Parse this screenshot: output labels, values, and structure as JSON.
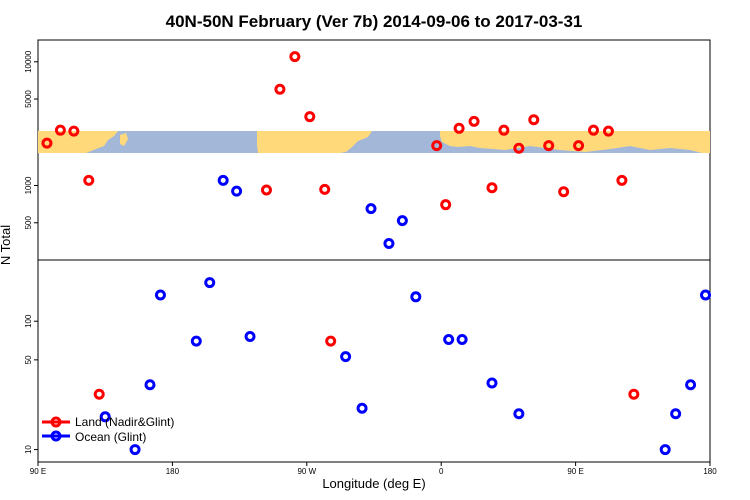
{
  "chart_data": {
    "type": "scatter",
    "title": "40N-50N February (Ver 7b)   2014-09-06 to 2017-03-31",
    "xlabel": "Longitude (deg E)",
    "ylabel": "N Total",
    "x_ticks": [
      {
        "value": 90,
        "label": "90 E"
      },
      {
        "value": 180,
        "label": "180"
      },
      {
        "value": 270,
        "label": "90 W"
      },
      {
        "value": 360,
        "label": "0"
      },
      {
        "value": 450,
        "label": "90 E"
      },
      {
        "value": 540,
        "label": "180"
      }
    ],
    "xlim": [
      90,
      540
    ],
    "y_scale": "log",
    "upper_panel": {
      "y_ticks": [
        500,
        1000,
        5000,
        10000
      ],
      "ylim": [
        250,
        15000
      ]
    },
    "lower_panel": {
      "y_ticks": [
        10,
        50,
        100
      ],
      "ylim": [
        8,
        300
      ]
    },
    "colors": {
      "land": "#ff0000",
      "ocean": "#0000ff",
      "map_ocean": "#a3b8d9",
      "map_land": "#ffd97a"
    },
    "legend_position": "bottom-left",
    "series": [
      {
        "name": "Land (Nadir&Glint)",
        "marker": "open-circle",
        "points": [
          [
            96,
            2200
          ],
          [
            105,
            2800
          ],
          [
            114,
            2750
          ],
          [
            124,
            1100
          ],
          [
            131,
            27
          ],
          [
            243,
            920
          ],
          [
            252,
            6000
          ],
          [
            262,
            11000
          ],
          [
            272,
            3600
          ],
          [
            282,
            930
          ],
          [
            286,
            70
          ],
          [
            357,
            2100
          ],
          [
            363,
            700
          ],
          [
            372,
            2900
          ],
          [
            382,
            3300
          ],
          [
            394,
            960
          ],
          [
            402,
            2800
          ],
          [
            412,
            2000
          ],
          [
            422,
            3400
          ],
          [
            432,
            2100
          ],
          [
            442,
            890
          ],
          [
            452,
            2100
          ],
          [
            462,
            2800
          ],
          [
            472,
            2750
          ],
          [
            481,
            1100
          ],
          [
            489,
            27
          ]
        ]
      },
      {
        "name": "Ocean (Glint)",
        "marker": "open-circle",
        "points": [
          [
            135,
            18
          ],
          [
            155,
            10
          ],
          [
            165,
            32
          ],
          [
            172,
            160
          ],
          [
            196,
            70
          ],
          [
            205,
            200
          ],
          [
            214,
            1100
          ],
          [
            223,
            900
          ],
          [
            232,
            76
          ],
          [
            296,
            53
          ],
          [
            307,
            21
          ],
          [
            313,
            650
          ],
          [
            325,
            340
          ],
          [
            334,
            520
          ],
          [
            343,
            155
          ],
          [
            365,
            72
          ],
          [
            374,
            72
          ],
          [
            394,
            33
          ],
          [
            412,
            19
          ],
          [
            510,
            10
          ],
          [
            517,
            19
          ],
          [
            527,
            32
          ],
          [
            537,
            160
          ]
        ]
      }
    ]
  }
}
